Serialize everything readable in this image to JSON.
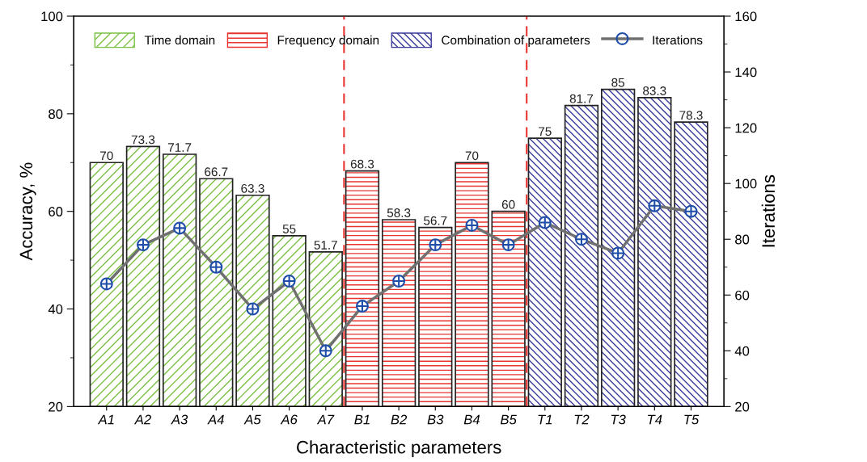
{
  "chart_data": {
    "type": "bar",
    "xlabel": "Characteristic parameters",
    "ylabel": "Accuracy, %",
    "y2label": "Iterations",
    "categories": [
      "A1",
      "A2",
      "A3",
      "A4",
      "A5",
      "A6",
      "A7",
      "B1",
      "B2",
      "B3",
      "B4",
      "B5",
      "T1",
      "T2",
      "T3",
      "T4",
      "T5"
    ],
    "series": [
      {
        "name": "Time domain",
        "color": "#7ac143",
        "values": [
          70,
          73.3,
          71.7,
          66.7,
          63.3,
          55,
          51.7,
          null,
          null,
          null,
          null,
          null,
          null,
          null,
          null,
          null,
          null
        ],
        "value_labels": [
          "70",
          "73.3",
          "71.7",
          "66.7",
          "63.3",
          "55",
          "51.7",
          null,
          null,
          null,
          null,
          null,
          null,
          null,
          null,
          null,
          null
        ]
      },
      {
        "name": "Frequency domain",
        "color": "#e8332f",
        "values": [
          null,
          null,
          null,
          null,
          null,
          null,
          null,
          68.3,
          58.3,
          56.7,
          70,
          60,
          null,
          null,
          null,
          null,
          null
        ],
        "value_labels": [
          null,
          null,
          null,
          null,
          null,
          null,
          null,
          "68.3",
          "58.3",
          "56.7",
          "70",
          "60",
          null,
          null,
          null,
          null,
          null
        ]
      },
      {
        "name": "Combination of parameters",
        "color": "#3a3a9c",
        "values": [
          null,
          null,
          null,
          null,
          null,
          null,
          null,
          null,
          null,
          null,
          null,
          null,
          75,
          81.7,
          85,
          83.3,
          78.3
        ],
        "value_labels": [
          null,
          null,
          null,
          null,
          null,
          null,
          null,
          null,
          null,
          null,
          null,
          null,
          "75",
          "81.7",
          "85",
          "83.3",
          "78.3"
        ]
      },
      {
        "name": "Iterations",
        "type": "line",
        "axis": "y2",
        "color": "#707070",
        "marker": "circle",
        "values": [
          64,
          78,
          84,
          70,
          55,
          65,
          40,
          56,
          65,
          78,
          85,
          78,
          86,
          80,
          75,
          92,
          90
        ]
      }
    ],
    "ylim": [
      20,
      100
    ],
    "yticks": [
      20,
      40,
      60,
      80,
      100
    ],
    "y2lim": [
      20,
      160
    ],
    "y2ticks": [
      20,
      40,
      60,
      80,
      100,
      120,
      140,
      160
    ],
    "legend": "top",
    "grid": false
  }
}
